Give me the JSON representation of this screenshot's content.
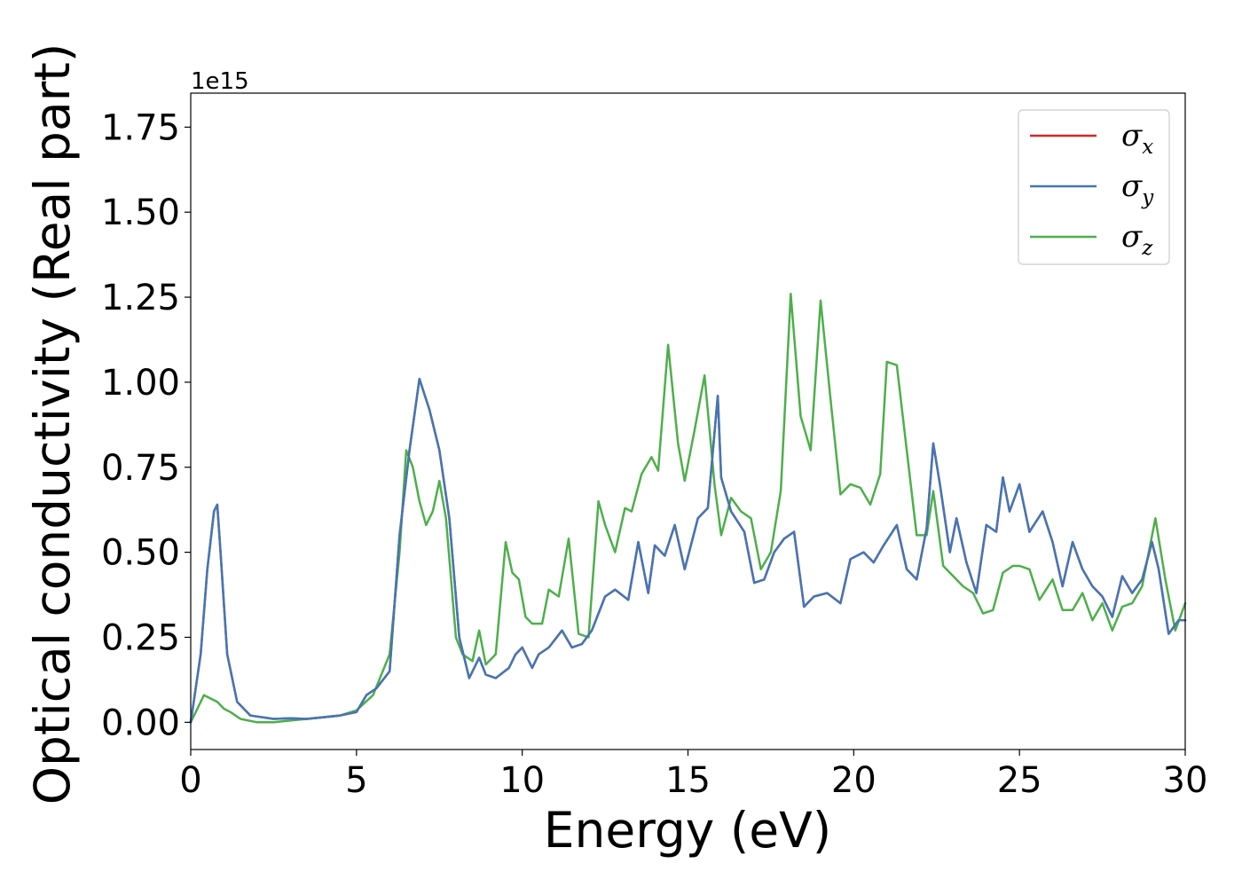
{
  "chart_data": {
    "type": "line",
    "xlabel": "Energy (eV)",
    "ylabel": "Optical conductivity (Real part)",
    "y_offset_label": "1e15",
    "xlim": [
      0,
      30
    ],
    "ylim": [
      -0.08,
      1.85
    ],
    "xticks": [
      0,
      5,
      10,
      15,
      20,
      25,
      30
    ],
    "xtick_labels": [
      "0",
      "5",
      "10",
      "15",
      "20",
      "25",
      "30"
    ],
    "yticks": [
      0,
      0.25,
      0.5,
      0.75,
      1.0,
      1.25,
      1.5,
      1.75
    ],
    "ytick_labels": [
      "0.00",
      "0.25",
      "0.50",
      "0.75",
      "1.00",
      "1.25",
      "1.50",
      "1.75"
    ],
    "grid": false,
    "legend_position": "top-right",
    "series": [
      {
        "name": "σx",
        "name_main": "σ",
        "name_sub": "x",
        "color": "#d62728",
        "x": [
          0,
          0.3,
          0.5,
          0.7,
          0.8,
          0.9,
          1.1,
          1.4,
          1.8,
          2.5,
          3,
          3.5,
          4,
          4.5,
          5,
          5.3,
          5.6,
          6,
          6.3,
          6.6,
          6.9,
          7.2,
          7.5,
          7.8,
          8.1,
          8.4,
          8.7,
          8.9,
          9.2,
          9.6,
          9.8,
          10,
          10.3,
          10.5,
          10.8,
          11.2,
          11.5,
          11.8,
          12.1,
          12.5,
          12.8,
          13.2,
          13.5,
          13.8,
          14,
          14.3,
          14.6,
          14.9,
          15.3,
          15.6,
          15.9,
          16,
          16.3,
          16.7,
          17,
          17.3,
          17.6,
          17.9,
          18.2,
          18.5,
          18.8,
          19.2,
          19.6,
          19.9,
          20.3,
          20.6,
          20.9,
          21.3,
          21.6,
          21.9,
          22.2,
          22.4,
          22.6,
          22.9,
          23.1,
          23.4,
          23.7,
          24,
          24.3,
          24.5,
          24.7,
          25,
          25.3,
          25.7,
          26,
          26.3,
          26.6,
          26.9,
          27.2,
          27.5,
          27.8,
          28.1,
          28.4,
          28.7,
          29,
          29.2,
          29.5,
          29.8,
          30
        ],
        "y": [
          0,
          0.2,
          0.45,
          0.62,
          0.64,
          0.5,
          0.2,
          0.06,
          0.02,
          0.01,
          0.012,
          0.01,
          0.015,
          0.02,
          0.03,
          0.08,
          0.1,
          0.15,
          0.55,
          0.8,
          1.01,
          0.92,
          0.8,
          0.6,
          0.25,
          0.13,
          0.19,
          0.14,
          0.13,
          0.16,
          0.2,
          0.22,
          0.16,
          0.2,
          0.22,
          0.27,
          0.22,
          0.23,
          0.27,
          0.37,
          0.39,
          0.36,
          0.53,
          0.38,
          0.52,
          0.49,
          0.58,
          0.45,
          0.6,
          0.63,
          0.96,
          0.72,
          0.62,
          0.56,
          0.41,
          0.42,
          0.5,
          0.54,
          0.56,
          0.34,
          0.37,
          0.38,
          0.35,
          0.48,
          0.5,
          0.47,
          0.52,
          0.58,
          0.45,
          0.42,
          0.57,
          0.82,
          0.7,
          0.5,
          0.6,
          0.47,
          0.38,
          0.58,
          0.56,
          0.72,
          0.62,
          0.7,
          0.56,
          0.62,
          0.53,
          0.4,
          0.53,
          0.45,
          0.4,
          0.37,
          0.31,
          0.43,
          0.38,
          0.42,
          0.53,
          0.45,
          0.26,
          0.3,
          0.3
        ]
      },
      {
        "name": "σy",
        "name_main": "σ",
        "name_sub": "y",
        "color": "#4277b5",
        "x": [
          0,
          0.3,
          0.5,
          0.7,
          0.8,
          0.9,
          1.1,
          1.4,
          1.8,
          2.5,
          3,
          3.5,
          4,
          4.5,
          5,
          5.3,
          5.6,
          6,
          6.3,
          6.6,
          6.9,
          7.2,
          7.5,
          7.8,
          8.1,
          8.4,
          8.7,
          8.9,
          9.2,
          9.6,
          9.8,
          10,
          10.3,
          10.5,
          10.8,
          11.2,
          11.5,
          11.8,
          12.1,
          12.5,
          12.8,
          13.2,
          13.5,
          13.8,
          14,
          14.3,
          14.6,
          14.9,
          15.3,
          15.6,
          15.9,
          16,
          16.3,
          16.7,
          17,
          17.3,
          17.6,
          17.9,
          18.2,
          18.5,
          18.8,
          19.2,
          19.6,
          19.9,
          20.3,
          20.6,
          20.9,
          21.3,
          21.6,
          21.9,
          22.2,
          22.4,
          22.6,
          22.9,
          23.1,
          23.4,
          23.7,
          24,
          24.3,
          24.5,
          24.7,
          25,
          25.3,
          25.7,
          26,
          26.3,
          26.6,
          26.9,
          27.2,
          27.5,
          27.8,
          28.1,
          28.4,
          28.7,
          29,
          29.2,
          29.5,
          29.8,
          30
        ],
        "y": [
          0,
          0.2,
          0.45,
          0.62,
          0.64,
          0.5,
          0.2,
          0.06,
          0.02,
          0.01,
          0.012,
          0.01,
          0.015,
          0.02,
          0.03,
          0.08,
          0.1,
          0.15,
          0.55,
          0.8,
          1.01,
          0.92,
          0.8,
          0.6,
          0.25,
          0.13,
          0.19,
          0.14,
          0.13,
          0.16,
          0.2,
          0.22,
          0.16,
          0.2,
          0.22,
          0.27,
          0.22,
          0.23,
          0.27,
          0.37,
          0.39,
          0.36,
          0.53,
          0.38,
          0.52,
          0.49,
          0.58,
          0.45,
          0.6,
          0.63,
          0.96,
          0.72,
          0.62,
          0.56,
          0.41,
          0.42,
          0.5,
          0.54,
          0.56,
          0.34,
          0.37,
          0.38,
          0.35,
          0.48,
          0.5,
          0.47,
          0.52,
          0.58,
          0.45,
          0.42,
          0.57,
          0.82,
          0.7,
          0.5,
          0.6,
          0.47,
          0.38,
          0.58,
          0.56,
          0.72,
          0.62,
          0.7,
          0.56,
          0.62,
          0.53,
          0.4,
          0.53,
          0.45,
          0.4,
          0.37,
          0.31,
          0.43,
          0.38,
          0.42,
          0.53,
          0.45,
          0.26,
          0.3,
          0.3
        ]
      },
      {
        "name": "σz",
        "name_main": "σ",
        "name_sub": "z",
        "color": "#4daf4a",
        "x": [
          0,
          0.2,
          0.4,
          0.6,
          0.8,
          1,
          1.2,
          1.5,
          2,
          2.5,
          3,
          3.5,
          4,
          4.5,
          5,
          5.5,
          6,
          6.3,
          6.5,
          6.7,
          6.9,
          7.1,
          7.3,
          7.5,
          7.7,
          8,
          8.2,
          8.5,
          8.7,
          8.9,
          9.2,
          9.5,
          9.7,
          9.9,
          10.1,
          10.3,
          10.6,
          10.8,
          11.1,
          11.4,
          11.7,
          12,
          12.3,
          12.5,
          12.8,
          13.1,
          13.3,
          13.6,
          13.9,
          14.1,
          14.4,
          14.7,
          14.9,
          15.2,
          15.5,
          15.8,
          16,
          16.3,
          16.6,
          16.9,
          17.2,
          17.5,
          17.8,
          18.1,
          18.4,
          18.7,
          19,
          19.3,
          19.6,
          19.9,
          20.2,
          20.5,
          20.8,
          21,
          21.3,
          21.6,
          21.9,
          22.2,
          22.4,
          22.7,
          23,
          23.3,
          23.6,
          23.9,
          24.2,
          24.5,
          24.8,
          25,
          25.3,
          25.6,
          26,
          26.3,
          26.6,
          26.9,
          27.2,
          27.5,
          27.8,
          28.1,
          28.4,
          28.7,
          29.1,
          29.4,
          29.7,
          30
        ],
        "y": [
          0,
          0.04,
          0.08,
          0.07,
          0.06,
          0.04,
          0.03,
          0.01,
          0.0,
          0.0,
          0.005,
          0.01,
          0.015,
          0.02,
          0.035,
          0.08,
          0.2,
          0.5,
          0.8,
          0.75,
          0.65,
          0.58,
          0.62,
          0.71,
          0.6,
          0.25,
          0.2,
          0.18,
          0.27,
          0.17,
          0.2,
          0.53,
          0.44,
          0.42,
          0.31,
          0.29,
          0.29,
          0.39,
          0.37,
          0.54,
          0.26,
          0.25,
          0.65,
          0.58,
          0.5,
          0.63,
          0.62,
          0.73,
          0.78,
          0.74,
          1.11,
          0.82,
          0.71,
          0.86,
          1.02,
          0.7,
          0.55,
          0.66,
          0.62,
          0.6,
          0.45,
          0.5,
          0.68,
          1.26,
          0.9,
          0.8,
          1.24,
          0.95,
          0.67,
          0.7,
          0.69,
          0.64,
          0.73,
          1.06,
          1.05,
          0.8,
          0.55,
          0.55,
          0.68,
          0.46,
          0.43,
          0.4,
          0.38,
          0.32,
          0.33,
          0.44,
          0.46,
          0.46,
          0.45,
          0.36,
          0.42,
          0.33,
          0.33,
          0.38,
          0.3,
          0.35,
          0.27,
          0.34,
          0.35,
          0.4,
          0.6,
          0.42,
          0.27,
          0.35
        ]
      }
    ]
  }
}
